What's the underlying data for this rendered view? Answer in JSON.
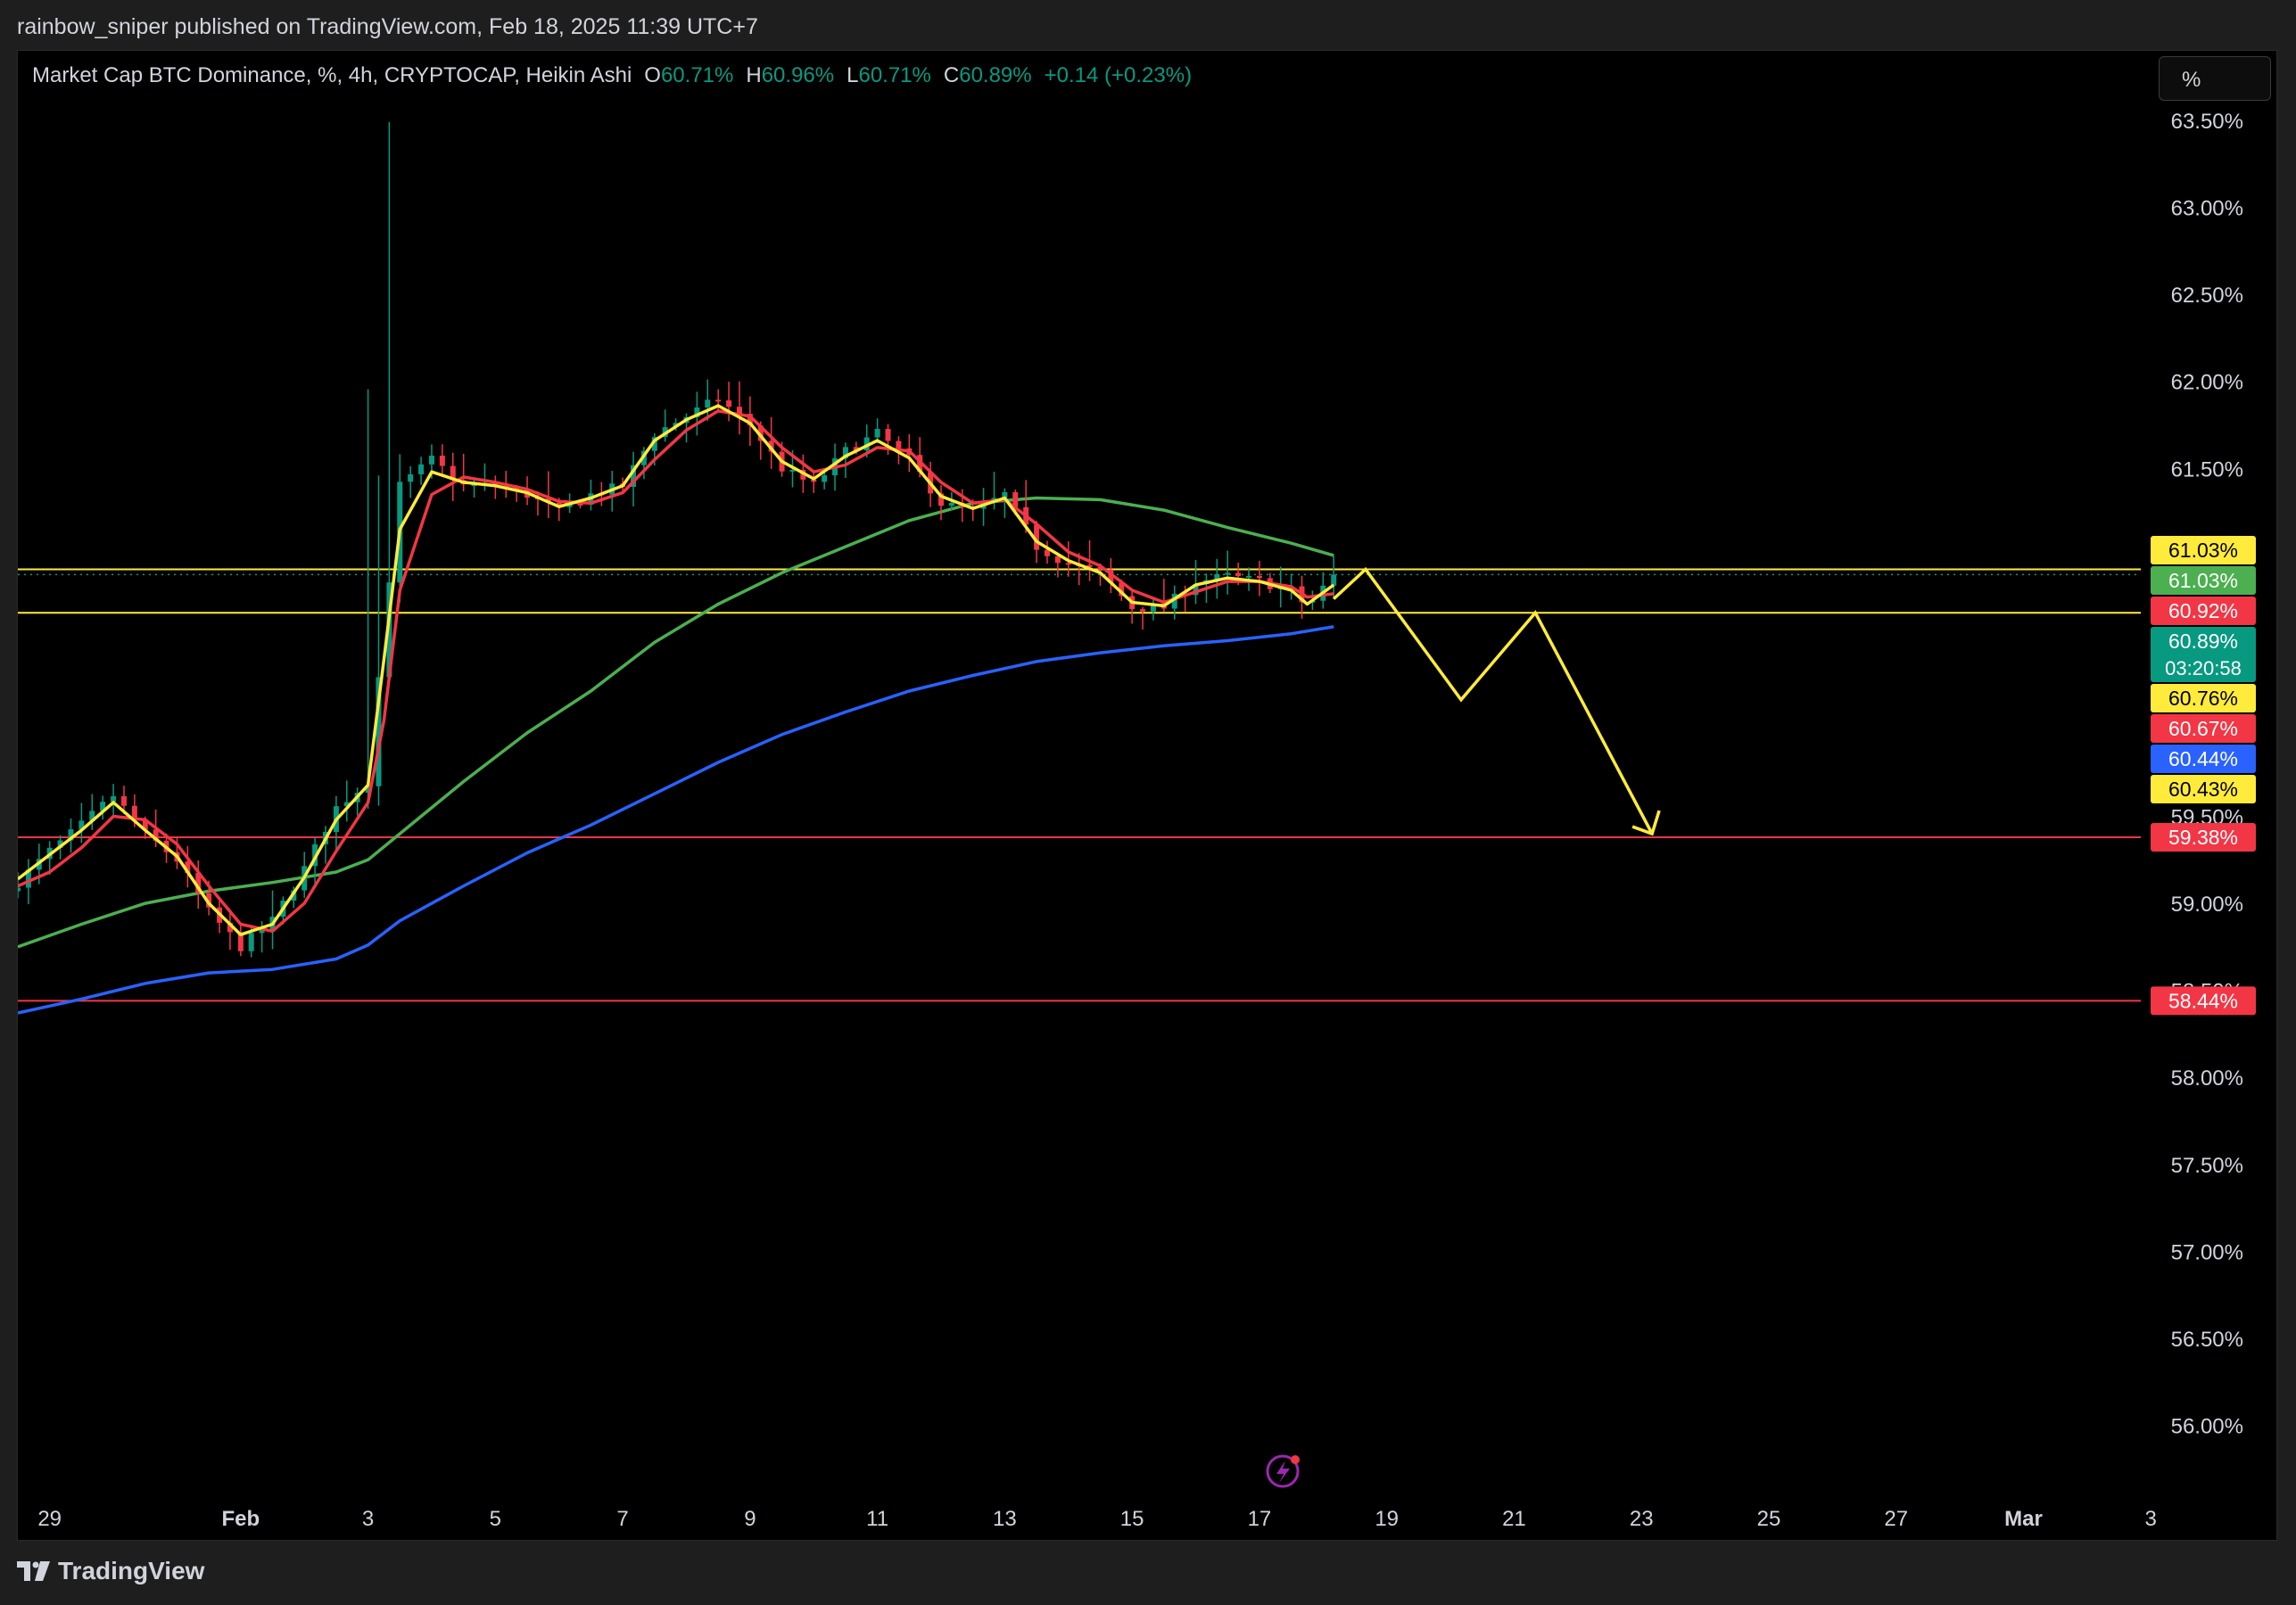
{
  "header": {
    "publisher_line": "rainbow_sniper published on TradingView.com, Feb 18, 2025 11:39 UTC+7"
  },
  "legend": {
    "symbol_text": "Market Cap BTC Dominance, %, 4h, CRYPTOCAP, Heikin Ashi",
    "o_label": "O",
    "o_value": "60.71%",
    "h_label": "H",
    "h_value": "60.96%",
    "l_label": "L",
    "l_value": "60.71%",
    "c_label": "C",
    "c_value": "60.89%",
    "change": "+0.14 (+0.23%)"
  },
  "scale_mode_label": "%",
  "footer": {
    "brand": "TradingView"
  },
  "colors": {
    "background": "#000000",
    "up": "#089981",
    "down": "#f23645",
    "ema_fast": "#ffeb3b",
    "ema_red": "#f23645",
    "ma_green": "#4caf50",
    "ma_blue": "#2962ff",
    "level_yellow": "#ffeb3b",
    "level_red": "#f23645",
    "axis_text": "#d1d4dc"
  },
  "chart_data": {
    "type": "candlestick",
    "title": "Market Cap BTC Dominance, %, 4h, CRYPTOCAP, Heikin Ashi",
    "x_tick_labels": [
      "29",
      "Feb",
      "3",
      "5",
      "7",
      "9",
      "11",
      "13",
      "15",
      "17",
      "19",
      "21",
      "23",
      "25",
      "27",
      "Mar",
      "3"
    ],
    "x_tick_dates": [
      "2025-01-29",
      "2025-02-01",
      "2025-02-03",
      "2025-02-05",
      "2025-02-07",
      "2025-02-09",
      "2025-02-11",
      "2025-02-13",
      "2025-02-15",
      "2025-02-17",
      "2025-02-19",
      "2025-02-21",
      "2025-02-23",
      "2025-02-25",
      "2025-02-27",
      "2025-03-01",
      "2025-03-03"
    ],
    "x_range": [
      "2025-01-28T12:00",
      "2025-03-05T00:00"
    ],
    "y_unit": "%",
    "y_ticks": [
      56.0,
      56.5,
      57.0,
      57.5,
      58.0,
      58.5,
      59.0,
      59.5,
      60.0,
      60.5,
      61.0,
      61.5,
      62.0,
      62.5,
      63.0,
      63.5
    ],
    "y_tick_labels": [
      "56.00%",
      "56.50%",
      "57.00%",
      "57.50%",
      "58.00%",
      "58.50%",
      "59.00%",
      "59.50%",
      "60.00%",
      "60.50%",
      "61.00%",
      "61.50%",
      "62.00%",
      "62.50%",
      "63.00%",
      "63.50%"
    ],
    "ylim": [
      55.7,
      63.9
    ],
    "grid": false,
    "price_path": [
      [
        "2025-01-28T12:00",
        59.12
      ],
      [
        "2025-01-29T00:00",
        59.3
      ],
      [
        "2025-01-29T12:00",
        59.45
      ],
      [
        "2025-01-30T00:00",
        59.62
      ],
      [
        "2025-01-30T12:00",
        59.4
      ],
      [
        "2025-01-31T00:00",
        59.25
      ],
      [
        "2025-01-31T12:00",
        58.95
      ],
      [
        "2025-02-01T00:00",
        58.75
      ],
      [
        "2025-02-01T12:00",
        58.9
      ],
      [
        "2025-02-02T00:00",
        59.2
      ],
      [
        "2025-02-02T12:00",
        59.55
      ],
      [
        "2025-02-03T00:00",
        59.7
      ],
      [
        "2025-02-03T06:00",
        60.6
      ],
      [
        "2025-02-03T12:00",
        61.4
      ],
      [
        "2025-02-04T00:00",
        61.55
      ],
      [
        "2025-02-04T12:00",
        61.4
      ],
      [
        "2025-02-05T00:00",
        61.4
      ],
      [
        "2025-02-05T12:00",
        61.35
      ],
      [
        "2025-02-06T00:00",
        61.25
      ],
      [
        "2025-02-06T12:00",
        61.35
      ],
      [
        "2025-02-07T00:00",
        61.4
      ],
      [
        "2025-02-07T12:00",
        61.7
      ],
      [
        "2025-02-08T00:00",
        61.8
      ],
      [
        "2025-02-08T12:00",
        61.9
      ],
      [
        "2025-02-09T00:00",
        61.75
      ],
      [
        "2025-02-09T12:00",
        61.5
      ],
      [
        "2025-02-10T00:00",
        61.4
      ],
      [
        "2025-02-10T12:00",
        61.6
      ],
      [
        "2025-02-11T00:00",
        61.7
      ],
      [
        "2025-02-11T12:00",
        61.55
      ],
      [
        "2025-02-12T00:00",
        61.3
      ],
      [
        "2025-02-12T12:00",
        61.25
      ],
      [
        "2025-02-13T00:00",
        61.35
      ],
      [
        "2025-02-13T12:00",
        61.05
      ],
      [
        "2025-02-14T00:00",
        60.95
      ],
      [
        "2025-02-14T12:00",
        60.9
      ],
      [
        "2025-02-15T00:00",
        60.7
      ],
      [
        "2025-02-15T12:00",
        60.7
      ],
      [
        "2025-02-16T00:00",
        60.85
      ],
      [
        "2025-02-16T12:00",
        60.88
      ],
      [
        "2025-02-17T00:00",
        60.85
      ],
      [
        "2025-02-17T12:00",
        60.8
      ],
      [
        "2025-02-17T18:00",
        60.7
      ],
      [
        "2025-02-18T04:00",
        60.89
      ]
    ],
    "series": [
      {
        "color": "#ffeb3b",
        "points": [
          [
            "2025-01-28T12:00",
            59.14
          ],
          [
            "2025-01-29T00:00",
            59.28
          ],
          [
            "2025-01-29T12:00",
            59.42
          ],
          [
            "2025-01-30T00:00",
            59.58
          ],
          [
            "2025-01-30T12:00",
            59.42
          ],
          [
            "2025-01-31T00:00",
            59.27
          ],
          [
            "2025-01-31T12:00",
            59.0
          ],
          [
            "2025-02-01T00:00",
            58.82
          ],
          [
            "2025-02-01T12:00",
            58.88
          ],
          [
            "2025-02-02T00:00",
            59.15
          ],
          [
            "2025-02-02T12:00",
            59.48
          ],
          [
            "2025-02-03T00:00",
            59.68
          ],
          [
            "2025-02-03T06:00",
            60.4
          ],
          [
            "2025-02-03T12:00",
            61.15
          ],
          [
            "2025-02-04T00:00",
            61.48
          ],
          [
            "2025-02-04T12:00",
            61.42
          ],
          [
            "2025-02-05T00:00",
            61.4
          ],
          [
            "2025-02-05T12:00",
            61.36
          ],
          [
            "2025-02-06T00:00",
            61.28
          ],
          [
            "2025-02-06T12:00",
            61.33
          ],
          [
            "2025-02-07T00:00",
            61.4
          ],
          [
            "2025-02-07T12:00",
            61.66
          ],
          [
            "2025-02-08T00:00",
            61.78
          ],
          [
            "2025-02-08T12:00",
            61.86
          ],
          [
            "2025-02-09T00:00",
            61.76
          ],
          [
            "2025-02-09T12:00",
            61.54
          ],
          [
            "2025-02-10T00:00",
            61.44
          ],
          [
            "2025-02-10T12:00",
            61.57
          ],
          [
            "2025-02-11T00:00",
            61.66
          ],
          [
            "2025-02-11T12:00",
            61.56
          ],
          [
            "2025-02-12T00:00",
            61.34
          ],
          [
            "2025-02-12T12:00",
            61.27
          ],
          [
            "2025-02-13T00:00",
            61.33
          ],
          [
            "2025-02-13T12:00",
            61.08
          ],
          [
            "2025-02-14T00:00",
            60.97
          ],
          [
            "2025-02-14T12:00",
            60.9
          ],
          [
            "2025-02-15T00:00",
            60.73
          ],
          [
            "2025-02-15T12:00",
            60.71
          ],
          [
            "2025-02-16T00:00",
            60.83
          ],
          [
            "2025-02-16T12:00",
            60.87
          ],
          [
            "2025-02-17T00:00",
            60.85
          ],
          [
            "2025-02-17T12:00",
            60.8
          ],
          [
            "2025-02-17T18:00",
            60.72
          ],
          [
            "2025-02-18T04:00",
            60.83
          ]
        ]
      },
      {
        "color": "#f23645",
        "points": [
          [
            "2025-01-28T12:00",
            59.1
          ],
          [
            "2025-01-29T00:00",
            59.18
          ],
          [
            "2025-01-29T12:00",
            59.32
          ],
          [
            "2025-01-30T00:00",
            59.5
          ],
          [
            "2025-01-30T12:00",
            59.48
          ],
          [
            "2025-01-31T00:00",
            59.34
          ],
          [
            "2025-01-31T12:00",
            59.1
          ],
          [
            "2025-02-01T00:00",
            58.88
          ],
          [
            "2025-02-01T12:00",
            58.84
          ],
          [
            "2025-02-02T00:00",
            59.0
          ],
          [
            "2025-02-02T12:00",
            59.3
          ],
          [
            "2025-02-03T00:00",
            59.58
          ],
          [
            "2025-02-03T06:00",
            60.05
          ],
          [
            "2025-02-03T12:00",
            60.8
          ],
          [
            "2025-02-04T00:00",
            61.35
          ],
          [
            "2025-02-04T12:00",
            61.45
          ],
          [
            "2025-02-05T00:00",
            61.42
          ],
          [
            "2025-02-05T12:00",
            61.38
          ],
          [
            "2025-02-06T00:00",
            61.31
          ],
          [
            "2025-02-06T12:00",
            61.3
          ],
          [
            "2025-02-07T00:00",
            61.36
          ],
          [
            "2025-02-07T12:00",
            61.55
          ],
          [
            "2025-02-08T00:00",
            61.72
          ],
          [
            "2025-02-08T12:00",
            61.83
          ],
          [
            "2025-02-09T00:00",
            61.8
          ],
          [
            "2025-02-09T12:00",
            61.62
          ],
          [
            "2025-02-10T00:00",
            61.48
          ],
          [
            "2025-02-10T12:00",
            61.52
          ],
          [
            "2025-02-11T00:00",
            61.62
          ],
          [
            "2025-02-11T12:00",
            61.6
          ],
          [
            "2025-02-12T00:00",
            61.42
          ],
          [
            "2025-02-12T12:00",
            61.3
          ],
          [
            "2025-02-13T00:00",
            61.32
          ],
          [
            "2025-02-13T12:00",
            61.18
          ],
          [
            "2025-02-14T00:00",
            61.02
          ],
          [
            "2025-02-14T12:00",
            60.94
          ],
          [
            "2025-02-15T00:00",
            60.8
          ],
          [
            "2025-02-15T12:00",
            60.73
          ],
          [
            "2025-02-16T00:00",
            60.79
          ],
          [
            "2025-02-16T12:00",
            60.85
          ],
          [
            "2025-02-17T00:00",
            60.85
          ],
          [
            "2025-02-17T12:00",
            60.82
          ],
          [
            "2025-02-17T18:00",
            60.76
          ],
          [
            "2025-02-18T04:00",
            60.78
          ]
        ]
      },
      {
        "color": "#4caf50",
        "points": [
          [
            "2025-01-28T12:00",
            58.75
          ],
          [
            "2025-01-29T12:00",
            58.88
          ],
          [
            "2025-01-30T12:00",
            59.0
          ],
          [
            "2025-01-31T12:00",
            59.07
          ],
          [
            "2025-02-01T12:00",
            59.12
          ],
          [
            "2025-02-02T12:00",
            59.18
          ],
          [
            "2025-02-03T00:00",
            59.25
          ],
          [
            "2025-02-03T12:00",
            59.4
          ],
          [
            "2025-02-04T12:00",
            59.7
          ],
          [
            "2025-02-05T12:00",
            59.98
          ],
          [
            "2025-02-06T12:00",
            60.22
          ],
          [
            "2025-02-07T12:00",
            60.5
          ],
          [
            "2025-02-08T12:00",
            60.72
          ],
          [
            "2025-02-09T12:00",
            60.9
          ],
          [
            "2025-02-10T12:00",
            61.05
          ],
          [
            "2025-02-11T12:00",
            61.2
          ],
          [
            "2025-02-12T12:00",
            61.3
          ],
          [
            "2025-02-13T12:00",
            61.33
          ],
          [
            "2025-02-14T12:00",
            61.32
          ],
          [
            "2025-02-15T12:00",
            61.26
          ],
          [
            "2025-02-16T12:00",
            61.16
          ],
          [
            "2025-02-17T12:00",
            61.07
          ],
          [
            "2025-02-18T04:00",
            61.0
          ]
        ]
      },
      {
        "color": "#2962ff",
        "points": [
          [
            "2025-01-28T12:00",
            58.37
          ],
          [
            "2025-01-29T12:00",
            58.45
          ],
          [
            "2025-01-30T12:00",
            58.54
          ],
          [
            "2025-01-31T12:00",
            58.6
          ],
          [
            "2025-02-01T12:00",
            58.62
          ],
          [
            "2025-02-02T12:00",
            58.68
          ],
          [
            "2025-02-03T00:00",
            58.76
          ],
          [
            "2025-02-03T12:00",
            58.9
          ],
          [
            "2025-02-04T12:00",
            59.1
          ],
          [
            "2025-02-05T12:00",
            59.29
          ],
          [
            "2025-02-06T12:00",
            59.45
          ],
          [
            "2025-02-07T12:00",
            59.63
          ],
          [
            "2025-02-08T12:00",
            59.81
          ],
          [
            "2025-02-09T12:00",
            59.97
          ],
          [
            "2025-02-10T12:00",
            60.1
          ],
          [
            "2025-02-11T12:00",
            60.22
          ],
          [
            "2025-02-12T12:00",
            60.31
          ],
          [
            "2025-02-13T12:00",
            60.39
          ],
          [
            "2025-02-14T12:00",
            60.44
          ],
          [
            "2025-02-15T12:00",
            60.48
          ],
          [
            "2025-02-16T12:00",
            60.51
          ],
          [
            "2025-02-17T12:00",
            60.55
          ],
          [
            "2025-02-18T04:00",
            60.59
          ]
        ]
      }
    ],
    "horizontal_levels": [
      {
        "value": 60.92,
        "color": "#ffeb3b"
      },
      {
        "value": 60.67,
        "color": "#ffeb3b"
      },
      {
        "value": 59.38,
        "color": "#f23645"
      },
      {
        "value": 58.44,
        "color": "#f23645"
      }
    ],
    "last_price_line": 60.89,
    "projection_path": [
      [
        "2025-02-18T04:00",
        60.75
      ],
      [
        "2025-02-18T16:00",
        60.92
      ],
      [
        "2025-02-20T04:00",
        60.17
      ],
      [
        "2025-02-21T08:00",
        60.67
      ],
      [
        "2025-02-23T04:00",
        59.4
      ]
    ],
    "price_axis_labels": [
      {
        "text": "61.03%",
        "value": 61.03,
        "bg": "#ffeb3b",
        "fg": "#000000"
      },
      {
        "text": "61.03%",
        "value": 61.03,
        "bg": "#4caf50",
        "fg": "#ffffff"
      },
      {
        "text": "60.92%",
        "value": 60.92,
        "bg": "#f23645",
        "fg": "#ffffff"
      },
      {
        "text": "60.89%",
        "value": 60.89,
        "bg": "#089981",
        "fg": "#ffffff",
        "sub": "03:20:58"
      },
      {
        "text": "60.76%",
        "value": 60.76,
        "bg": "#ffeb3b",
        "fg": "#000000"
      },
      {
        "text": "60.67%",
        "value": 60.67,
        "bg": "#f23645",
        "fg": "#ffffff"
      },
      {
        "text": "60.44%",
        "value": 60.44,
        "bg": "#2962ff",
        "fg": "#ffffff"
      },
      {
        "text": "60.43%",
        "value": 60.43,
        "bg": "#ffeb3b",
        "fg": "#000000"
      },
      {
        "text": "59.38%",
        "value": 59.38,
        "bg": "#f23645",
        "fg": "#ffffff"
      },
      {
        "text": "58.44%",
        "value": 58.44,
        "bg": "#f23645",
        "fg": "#ffffff"
      }
    ]
  }
}
